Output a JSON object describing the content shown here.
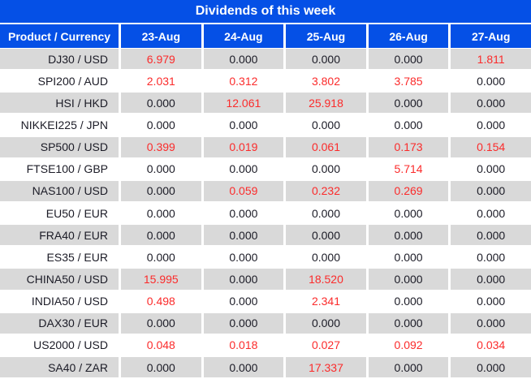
{
  "header": {
    "title": "Dividends of this week"
  },
  "colors": {
    "header_blue": "#0550e6",
    "row_gray": "#d9d9d9",
    "row_white": "#ffffff",
    "header_text": "#ffffff",
    "value_text_dark": "#1b1b26",
    "value_text_red": "#fb2b2b"
  },
  "chart_data": {
    "type": "table",
    "title": "Dividends of this week",
    "columns": [
      "Product / Currency",
      "23-Aug",
      "24-Aug",
      "25-Aug",
      "26-Aug",
      "27-Aug"
    ],
    "rows": [
      {
        "product": "DJ30 / USD",
        "values": [
          "6.979",
          "0.000",
          "0.000",
          "0.000",
          "1.811"
        ]
      },
      {
        "product": "SPI200 / AUD",
        "values": [
          "2.031",
          "0.312",
          "3.802",
          "3.785",
          "0.000"
        ]
      },
      {
        "product": "HSI / HKD",
        "values": [
          "0.000",
          "12.061",
          "25.918",
          "0.000",
          "0.000"
        ]
      },
      {
        "product": "NIKKEI225 / JPN",
        "values": [
          "0.000",
          "0.000",
          "0.000",
          "0.000",
          "0.000"
        ]
      },
      {
        "product": "SP500 / USD",
        "values": [
          "0.399",
          "0.019",
          "0.061",
          "0.173",
          "0.154"
        ]
      },
      {
        "product": "FTSE100 / GBP",
        "values": [
          "0.000",
          "0.000",
          "0.000",
          "5.714",
          "0.000"
        ]
      },
      {
        "product": "NAS100 / USD",
        "values": [
          "0.000",
          "0.059",
          "0.232",
          "0.269",
          "0.000"
        ]
      },
      {
        "product": "EU50 / EUR",
        "values": [
          "0.000",
          "0.000",
          "0.000",
          "0.000",
          "0.000"
        ]
      },
      {
        "product": "FRA40 / EUR",
        "values": [
          "0.000",
          "0.000",
          "0.000",
          "0.000",
          "0.000"
        ]
      },
      {
        "product": "ES35 / EUR",
        "values": [
          "0.000",
          "0.000",
          "0.000",
          "0.000",
          "0.000"
        ]
      },
      {
        "product": "CHINA50 / USD",
        "values": [
          "15.995",
          "0.000",
          "18.520",
          "0.000",
          "0.000"
        ]
      },
      {
        "product": "INDIA50 / USD",
        "values": [
          "0.498",
          "0.000",
          "2.341",
          "0.000",
          "0.000"
        ]
      },
      {
        "product": "DAX30 / EUR",
        "values": [
          "0.000",
          "0.000",
          "0.000",
          "0.000",
          "0.000"
        ]
      },
      {
        "product": "US2000 / USD",
        "values": [
          "0.048",
          "0.018",
          "0.027",
          "0.092",
          "0.034"
        ]
      },
      {
        "product": "SA40 / ZAR",
        "values": [
          "0.000",
          "0.000",
          "17.337",
          "0.000",
          "0.000"
        ]
      }
    ],
    "value_color_rule": "nonzero values rendered red, zero values dark",
    "row_striping": "alternating gray/white starting gray"
  }
}
